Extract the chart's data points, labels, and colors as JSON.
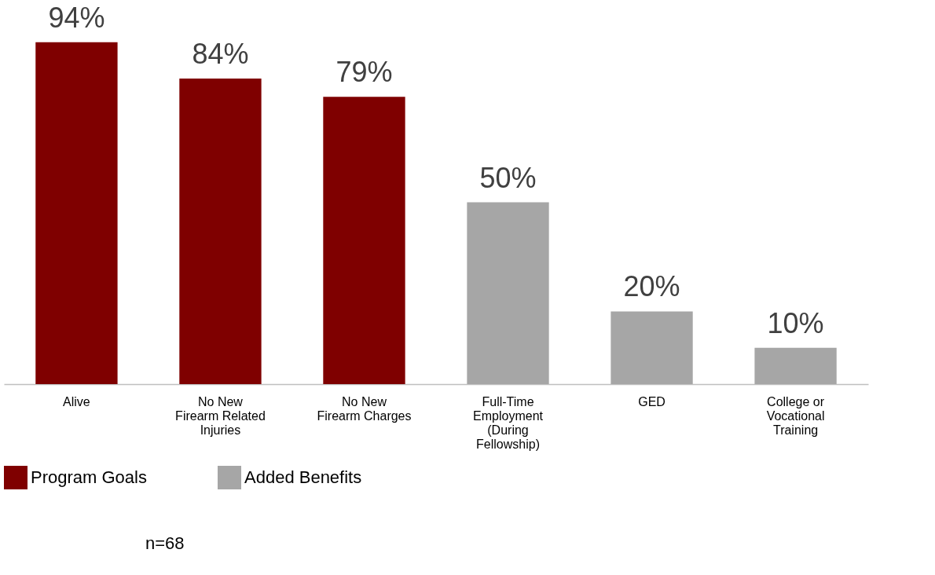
{
  "chart_data": {
    "type": "bar",
    "categories": [
      "Alive",
      "No New\nFirearm Related\nInjuries",
      "No New\nFirearm Charges",
      "Full-Time\nEmployment\n(During\nFellowship)",
      "GED",
      "College or\nVocational\nTraining"
    ],
    "series": [
      {
        "name": "Program Goals",
        "color": "#7f0000",
        "values": [
          94,
          84,
          79,
          null,
          null,
          null
        ],
        "value_labels": [
          "94%",
          "84%",
          "79%",
          null,
          null,
          null
        ]
      },
      {
        "name": "Added Benefits",
        "color": "#a6a6a6",
        "values": [
          null,
          null,
          null,
          50,
          20,
          10
        ],
        "value_labels": [
          null,
          null,
          null,
          "50%",
          "20%",
          "10%"
        ]
      }
    ],
    "annotations": [
      "n=68"
    ],
    "legend": "bottom",
    "grid": false
  }
}
